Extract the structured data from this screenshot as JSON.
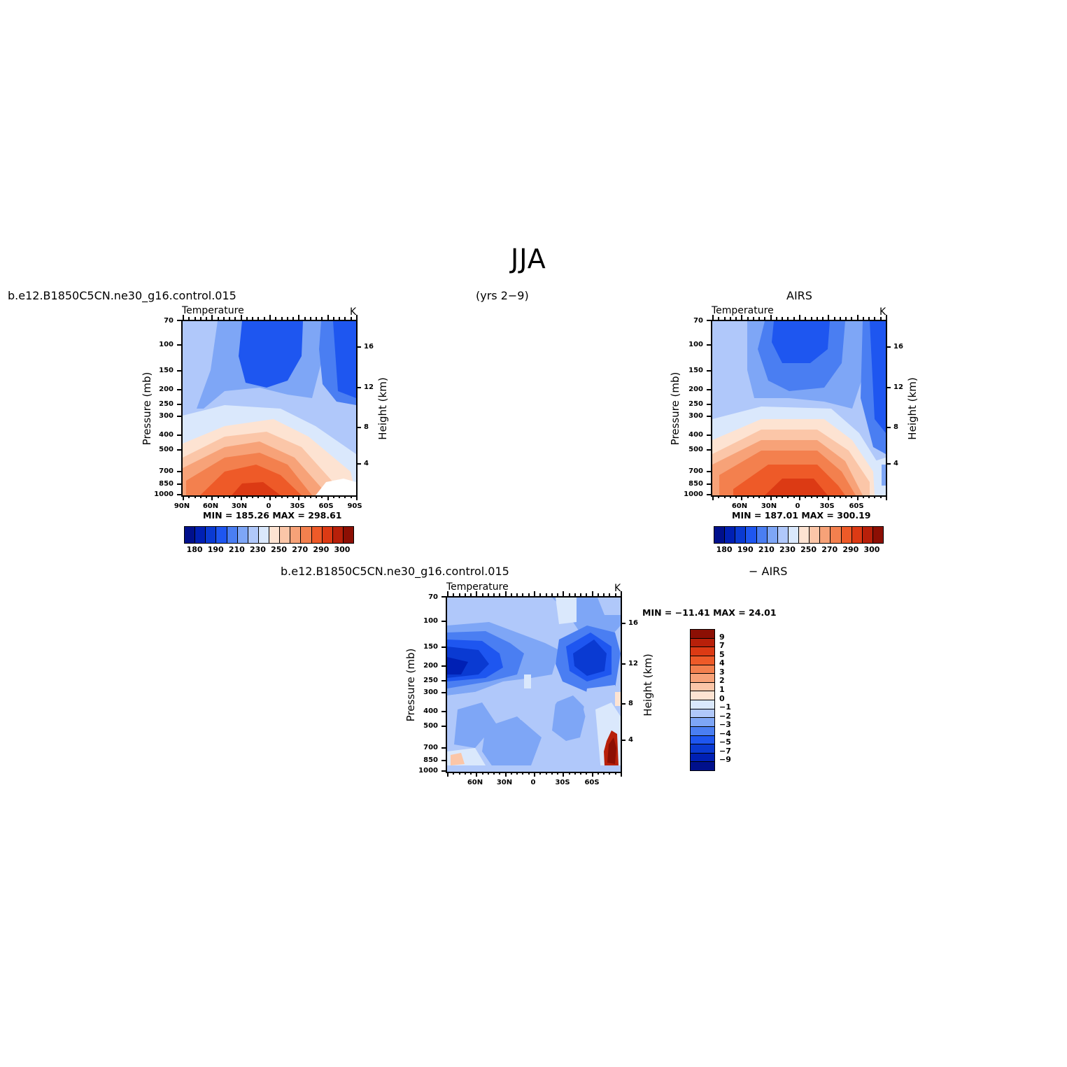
{
  "page": {
    "title": "JJA",
    "years": "(yrs 2−9)",
    "case_name": "b.e12.B1850C5CN.ne30_g16.control.015",
    "obs_name": "AIRS",
    "diff_label": "− AIRS"
  },
  "panels": {
    "model": {
      "case": "b.e12.B1850C5CN.ne30_g16.control.015",
      "variable": "Temperature",
      "units": "K",
      "minmax": "MIN = 185.26   MAX = 298.61"
    },
    "obs": {
      "case": "AIRS",
      "variable": "Temperature",
      "units": "K",
      "minmax": "MIN = 187.01   MAX = 300.19"
    },
    "diff": {
      "case": "b.e12.B1850C5CN.ne30_g16.control.015",
      "variable": "Temperature",
      "units": "K",
      "minmax": "MIN = −11.41   MAX =   24.01"
    }
  },
  "axes": {
    "ylabel": "Pressure (mb)",
    "y2label": "Height (km)",
    "pressure_ticks": [
      "70",
      "100",
      "150",
      "200",
      "250",
      "300",
      "400",
      "500",
      "700",
      "850",
      "1000"
    ],
    "height_ticks": [
      "16",
      "12",
      "8",
      "4"
    ],
    "lat_ticks_full": [
      "90N",
      "60N",
      "30N",
      "0",
      "30S",
      "60S",
      "90S"
    ],
    "lat_ticks_obs": [
      "60N",
      "30N",
      "0",
      "30S",
      "60S"
    ]
  },
  "colorbars": {
    "abs": {
      "colors": [
        "#00108c",
        "#0020b4",
        "#0a3ad2",
        "#1e56f0",
        "#4a7ef2",
        "#7ea6f6",
        "#b0c8fa",
        "#dae8fc",
        "#fde3d2",
        "#fbc6a8",
        "#f7a278",
        "#f3804e",
        "#ee5a28",
        "#dc3a14",
        "#b8200a",
        "#8c0f04"
      ],
      "labels": [
        "180",
        "190",
        "210",
        "230",
        "250",
        "270",
        "290",
        "300"
      ]
    },
    "diff": {
      "colors": [
        "#8c0f04",
        "#b8200a",
        "#dc3a14",
        "#ee5a28",
        "#f3804e",
        "#f7a278",
        "#fbc6a8",
        "#fde3d2",
        "#dae8fc",
        "#b0c8fa",
        "#7ea6f6",
        "#4a7ef2",
        "#1e56f0",
        "#0a3ad2",
        "#0020b4",
        "#00108c"
      ],
      "labels": [
        "9",
        "7",
        "5",
        "4",
        "3",
        "2",
        "1",
        "0",
        "−1",
        "−2",
        "−3",
        "−4",
        "−5",
        "−7",
        "−9"
      ]
    }
  },
  "chart_data": [
    {
      "type": "heatmap",
      "title": "Temperature",
      "units": "K",
      "x": [
        "90N",
        "60N",
        "30N",
        "0",
        "30S",
        "60S",
        "90S"
      ],
      "y": [
        70,
        100,
        150,
        200,
        250,
        300,
        400,
        500,
        700,
        850,
        1000
      ],
      "min": 185.26,
      "max": 298.61,
      "approx_field_K": [
        [
          215,
          212,
          200,
          195,
          198,
          205,
          208
        ],
        [
          218,
          214,
          200,
          195,
          200,
          205,
          200
        ],
        [
          218,
          216,
          205,
          200,
          205,
          210,
          200
        ],
        [
          220,
          218,
          215,
          212,
          215,
          215,
          205
        ],
        [
          225,
          222,
          220,
          220,
          220,
          220,
          212
        ],
        [
          230,
          228,
          228,
          228,
          228,
          225,
          215
        ],
        [
          245,
          250,
          252,
          250,
          245,
          235,
          222
        ],
        [
          255,
          262,
          265,
          262,
          255,
          242,
          228
        ],
        [
          268,
          278,
          282,
          280,
          270,
          255,
          238
        ],
        [
          275,
          288,
          292,
          290,
          282,
          262,
          245
        ],
        [
          278,
          292,
          298,
          296,
          286,
          265,
          250
        ]
      ]
    },
    {
      "type": "heatmap",
      "title": "Temperature",
      "units": "K",
      "x": [
        "60N",
        "30N",
        "0",
        "30S",
        "60S"
      ],
      "y": [
        70,
        100,
        150,
        200,
        250,
        300,
        400,
        500,
        700,
        850,
        1000
      ],
      "min": 187.01,
      "max": 300.19
    },
    {
      "type": "heatmap",
      "title": "Temperature",
      "units": "K",
      "x": [
        "60N",
        "30N",
        "0",
        "30S",
        "60S"
      ],
      "y": [
        70,
        100,
        150,
        200,
        250,
        300,
        400,
        500,
        700,
        850,
        1000
      ],
      "min": -11.41,
      "max": 24.01
    }
  ]
}
